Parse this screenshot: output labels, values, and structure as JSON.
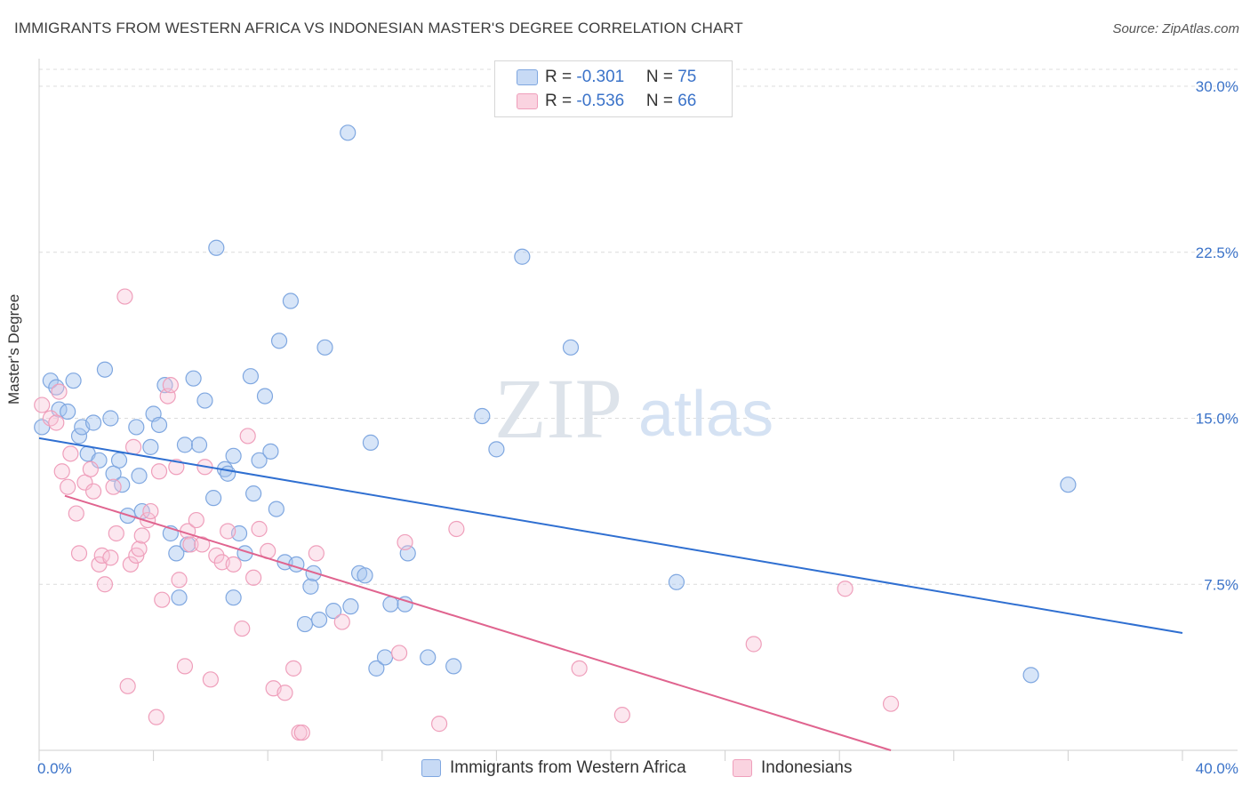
{
  "title": "IMMIGRANTS FROM WESTERN AFRICA VS INDONESIAN MASTER'S DEGREE CORRELATION CHART",
  "source": "Source: ZipAtlas.com",
  "watermark": {
    "zip": "ZIP",
    "atlas": "atlas"
  },
  "legend": {
    "rows": [
      {
        "r_label": "R = ",
        "r_value": "-0.301",
        "n_label": "N = ",
        "n_value": "75"
      },
      {
        "r_label": "R = ",
        "r_value": "-0.536",
        "n_label": "N = ",
        "n_value": "66"
      }
    ]
  },
  "chart_data": {
    "type": "scatter",
    "title": "IMMIGRANTS FROM WESTERN AFRICA VS INDONESIAN MASTER'S DEGREE CORRELATION CHART",
    "xlabel": "",
    "ylabel": "Master's Degree",
    "xlim": [
      0,
      40
    ],
    "ylim": [
      0,
      30
    ],
    "x_tick_labels": [
      "0.0%",
      "40.0%"
    ],
    "y_ticks": [
      7.5,
      15.0,
      22.5,
      30.0
    ],
    "y_tick_labels": [
      "7.5%",
      "15.0%",
      "22.5%",
      "30.0%"
    ],
    "grid": true,
    "colors": {
      "series1": "#7fa7e0",
      "series1_line": "#2f6fd1",
      "series2": "#ef9fbb",
      "series2_line": "#e0648f",
      "tick_text": "#3b73c9"
    },
    "series": [
      {
        "name": "Immigrants from Western Africa",
        "r": -0.301,
        "n": 75,
        "trend": {
          "x": [
            0,
            40
          ],
          "y": [
            14.1,
            5.3
          ]
        },
        "points": [
          [
            0.1,
            14.6
          ],
          [
            0.4,
            16.7
          ],
          [
            0.6,
            16.4
          ],
          [
            0.7,
            15.4
          ],
          [
            1.0,
            15.3
          ],
          [
            1.2,
            16.7
          ],
          [
            1.4,
            14.2
          ],
          [
            1.5,
            14.6
          ],
          [
            1.7,
            13.4
          ],
          [
            1.9,
            14.8
          ],
          [
            2.1,
            13.1
          ],
          [
            2.3,
            17.2
          ],
          [
            2.5,
            15.0
          ],
          [
            2.6,
            12.5
          ],
          [
            2.8,
            13.1
          ],
          [
            2.9,
            12.0
          ],
          [
            3.1,
            10.6
          ],
          [
            3.4,
            14.6
          ],
          [
            3.5,
            12.4
          ],
          [
            3.6,
            10.8
          ],
          [
            3.9,
            13.7
          ],
          [
            4.0,
            15.2
          ],
          [
            4.2,
            14.7
          ],
          [
            4.4,
            16.5
          ],
          [
            4.6,
            9.8
          ],
          [
            4.8,
            8.9
          ],
          [
            5.1,
            13.8
          ],
          [
            5.2,
            9.3
          ],
          [
            5.4,
            16.8
          ],
          [
            5.6,
            13.8
          ],
          [
            5.8,
            15.8
          ],
          [
            6.1,
            11.4
          ],
          [
            6.2,
            22.7
          ],
          [
            6.5,
            12.7
          ],
          [
            6.6,
            12.5
          ],
          [
            6.8,
            13.3
          ],
          [
            7.0,
            9.8
          ],
          [
            7.2,
            8.9
          ],
          [
            7.4,
            16.9
          ],
          [
            7.5,
            11.6
          ],
          [
            7.7,
            13.1
          ],
          [
            7.9,
            16.0
          ],
          [
            8.1,
            13.5
          ],
          [
            8.3,
            10.9
          ],
          [
            8.4,
            18.5
          ],
          [
            8.6,
            8.5
          ],
          [
            8.8,
            20.3
          ],
          [
            9.0,
            8.4
          ],
          [
            9.3,
            5.7
          ],
          [
            9.5,
            7.4
          ],
          [
            9.6,
            8.0
          ],
          [
            9.8,
            5.9
          ],
          [
            10.0,
            18.2
          ],
          [
            10.3,
            6.3
          ],
          [
            10.8,
            27.9
          ],
          [
            10.9,
            6.5
          ],
          [
            11.2,
            8.0
          ],
          [
            11.4,
            7.9
          ],
          [
            11.6,
            13.9
          ],
          [
            11.8,
            3.7
          ],
          [
            12.1,
            4.2
          ],
          [
            12.3,
            6.6
          ],
          [
            12.8,
            6.6
          ],
          [
            12.9,
            8.9
          ],
          [
            13.6,
            4.2
          ],
          [
            14.5,
            3.8
          ],
          [
            15.5,
            15.1
          ],
          [
            16.0,
            13.6
          ],
          [
            16.9,
            22.3
          ],
          [
            18.6,
            18.2
          ],
          [
            22.3,
            7.6
          ],
          [
            34.7,
            3.4
          ],
          [
            36.0,
            12.0
          ],
          [
            6.8,
            6.9
          ],
          [
            4.9,
            6.9
          ]
        ]
      },
      {
        "name": "Indonesians",
        "r": -0.536,
        "n": 66,
        "trend": {
          "x": [
            0.9,
            29.8
          ],
          "y": [
            11.5,
            0.0
          ]
        },
        "points": [
          [
            0.1,
            15.6
          ],
          [
            0.4,
            15.0
          ],
          [
            0.6,
            14.8
          ],
          [
            0.7,
            16.2
          ],
          [
            0.8,
            12.6
          ],
          [
            1.0,
            11.9
          ],
          [
            1.1,
            13.4
          ],
          [
            1.3,
            10.7
          ],
          [
            1.4,
            8.9
          ],
          [
            1.6,
            12.1
          ],
          [
            1.8,
            12.7
          ],
          [
            1.9,
            11.7
          ],
          [
            2.1,
            8.4
          ],
          [
            2.2,
            8.8
          ],
          [
            2.3,
            7.5
          ],
          [
            2.5,
            8.7
          ],
          [
            2.6,
            11.9
          ],
          [
            2.7,
            9.8
          ],
          [
            3.0,
            20.5
          ],
          [
            3.1,
            2.9
          ],
          [
            3.2,
            8.4
          ],
          [
            3.3,
            13.7
          ],
          [
            3.4,
            8.8
          ],
          [
            3.5,
            9.1
          ],
          [
            3.6,
            9.7
          ],
          [
            3.8,
            10.4
          ],
          [
            3.9,
            10.8
          ],
          [
            4.1,
            1.5
          ],
          [
            4.2,
            12.6
          ],
          [
            4.3,
            6.8
          ],
          [
            4.5,
            16.0
          ],
          [
            4.6,
            16.5
          ],
          [
            4.8,
            12.8
          ],
          [
            4.9,
            7.7
          ],
          [
            5.1,
            3.8
          ],
          [
            5.2,
            9.9
          ],
          [
            5.3,
            9.3
          ],
          [
            5.5,
            10.4
          ],
          [
            5.7,
            9.3
          ],
          [
            5.8,
            12.8
          ],
          [
            6.0,
            3.2
          ],
          [
            6.2,
            8.8
          ],
          [
            6.4,
            8.5
          ],
          [
            6.6,
            9.9
          ],
          [
            6.8,
            8.4
          ],
          [
            7.1,
            5.5
          ],
          [
            7.3,
            14.2
          ],
          [
            7.5,
            7.8
          ],
          [
            7.7,
            10.0
          ],
          [
            8.0,
            9.0
          ],
          [
            8.2,
            2.8
          ],
          [
            8.6,
            2.6
          ],
          [
            8.9,
            3.7
          ],
          [
            9.1,
            0.8
          ],
          [
            9.2,
            0.8
          ],
          [
            9.7,
            8.9
          ],
          [
            10.6,
            5.8
          ],
          [
            12.6,
            4.4
          ],
          [
            12.8,
            9.4
          ],
          [
            14.0,
            1.2
          ],
          [
            14.6,
            10.0
          ],
          [
            18.9,
            3.7
          ],
          [
            20.4,
            1.6
          ],
          [
            25.0,
            4.8
          ],
          [
            28.2,
            7.3
          ],
          [
            29.8,
            2.1
          ]
        ]
      }
    ]
  },
  "bottom_legend": [
    {
      "label": "Immigrants from Western Africa"
    },
    {
      "label": "Indonesians"
    }
  ]
}
